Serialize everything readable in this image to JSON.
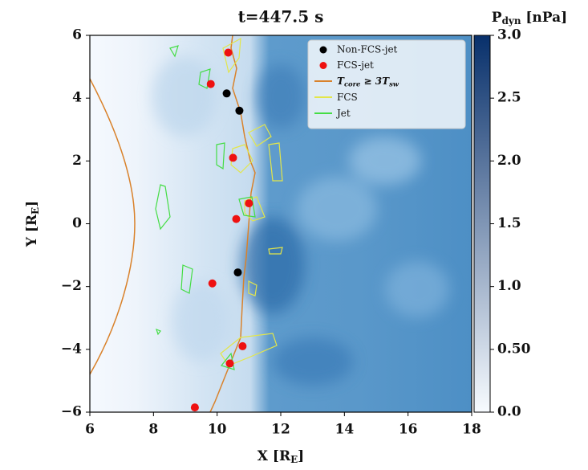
{
  "chart_data": {
    "type": "scatter",
    "title": "t=447.5 s",
    "xlabel": [
      "X [R",
      "E",
      "]"
    ],
    "ylabel": [
      "Y [R",
      "E",
      "]"
    ],
    "xlim": [
      6,
      18
    ],
    "ylim": [
      -6,
      6
    ],
    "xticks": [
      6,
      8,
      10,
      12,
      14,
      16,
      18
    ],
    "yticks": [
      {
        "value": -6,
        "label": "−6"
      },
      {
        "value": -4,
        "label": "−4"
      },
      {
        "value": -2,
        "label": "−2"
      },
      0,
      2,
      4,
      6
    ],
    "colorbar": {
      "label": [
        "P",
        "dyn",
        " [nPa]"
      ],
      "clim": [
        0,
        3
      ],
      "colors": [
        "#f7fbff",
        "#08306b"
      ],
      "ticks": [
        {
          "value": 0,
          "label": "0.0"
        },
        {
          "value": 0.5,
          "label": "0.50"
        },
        {
          "value": 1,
          "label": "1.0"
        },
        1.5,
        {
          "value": 2,
          "label": "2.0"
        },
        2.5,
        {
          "value": 3,
          "label": "3.0"
        }
      ]
    },
    "series": [
      {
        "name": "Non-FCS-jet",
        "color": "#000000",
        "x": [
          10.3,
          10.7,
          10.65
        ],
        "values": [
          4.15,
          3.6,
          -1.55
        ]
      },
      {
        "name": "FCS-jet",
        "color": "#ee1111",
        "x": [
          10.35,
          9.8,
          10.5,
          11.0,
          10.6,
          9.85,
          10.8,
          10.4,
          9.3
        ],
        "values": [
          5.45,
          4.45,
          2.1,
          0.65,
          0.15,
          -1.9,
          -3.9,
          -4.45,
          -5.85
        ]
      }
    ],
    "contours": [
      {
        "name": [
          "T",
          "core",
          " ≥ 3T",
          "sw"
        ],
        "color": "#d9822b"
      },
      {
        "name": [
          "FCS"
        ],
        "color": "#e3e64a"
      },
      {
        "name": [
          "Jet"
        ],
        "color": "#44dd44"
      }
    ],
    "legend": "upper right"
  }
}
